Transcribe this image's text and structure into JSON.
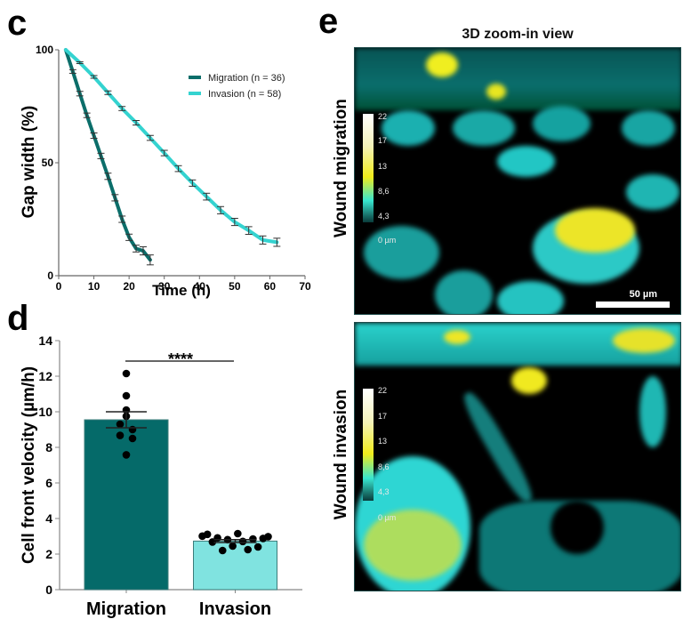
{
  "panels": {
    "c": "c",
    "d": "d",
    "e": "e"
  },
  "chart_data": [
    {
      "panel": "c",
      "type": "line",
      "title": "",
      "xlabel": "Time (h)",
      "ylabel": "Gap width (%)",
      "xlim": [
        0,
        70
      ],
      "ylim": [
        0,
        100
      ],
      "xticks": [
        0,
        10,
        20,
        30,
        40,
        50,
        60,
        70
      ],
      "yticks": [
        0,
        50,
        100
      ],
      "grid": false,
      "legend_position": "top-right",
      "series": [
        {
          "name": "Migration (n = 36)",
          "color": "#0b6e6a",
          "x": [
            2,
            4,
            6,
            8,
            10,
            12,
            14,
            16,
            18,
            20,
            22,
            24,
            26
          ],
          "y": [
            100,
            90.4,
            80.6,
            71,
            62,
            53,
            44,
            34.5,
            25,
            17,
            12,
            11,
            7
          ],
          "err": [
            0,
            0.8,
            1.0,
            1.0,
            1.2,
            1.2,
            1.4,
            1.4,
            1.4,
            1.4,
            1.5,
            1.8,
            2.2
          ]
        },
        {
          "name": "Invasion (n = 58)",
          "color": "#34d3d0",
          "x": [
            2,
            6,
            10,
            14,
            18,
            22,
            26,
            30,
            34,
            38,
            42,
            46,
            50,
            54,
            58,
            62
          ],
          "y": [
            100,
            94.3,
            88,
            81,
            74,
            67.7,
            61,
            54.3,
            47.4,
            41,
            35,
            29,
            23.8,
            20,
            15.8,
            14.8
          ],
          "err": [
            0,
            0.4,
            0.6,
            0.8,
            0.9,
            1.0,
            1.1,
            1.2,
            1.3,
            1.4,
            1.5,
            1.6,
            1.6,
            1.7,
            1.8,
            1.8
          ]
        }
      ]
    },
    {
      "panel": "d",
      "type": "bar",
      "title": "",
      "xlabel": "",
      "ylabel": "Cell front velocity (µm/h)",
      "ylim": [
        0,
        14
      ],
      "yticks": [
        0,
        2,
        4,
        6,
        8,
        10,
        12,
        14
      ],
      "grid": false,
      "categories": [
        "Migration",
        "Invasion"
      ],
      "values": [
        9.55,
        2.73
      ],
      "error": [
        [
          9.1,
          10.0
        ],
        [
          2.65,
          2.81
        ]
      ],
      "colors": [
        "#056a69",
        "#80e3e0"
      ],
      "points": [
        [
          12.15,
          10.9,
          10.1,
          9.75,
          9.3,
          9.0,
          8.67,
          8.5,
          7.58
        ],
        [
          3.01,
          3.11,
          2.68,
          2.91,
          2.2,
          2.81,
          2.45,
          3.15,
          2.71,
          2.25,
          2.85,
          2.4,
          2.88,
          2.98
        ]
      ],
      "significance": {
        "label": "****",
        "between": [
          "Migration",
          "Invasion"
        ]
      }
    }
  ],
  "panel_e": {
    "title": "3D zoom-in view",
    "rows": [
      {
        "label": "Wound migration",
        "colorbar_ticks": [
          "22",
          "17",
          "13",
          "8,6",
          "4,3",
          "0 µm"
        ],
        "scalebar": "50 µm"
      },
      {
        "label": "Wound invasion",
        "colorbar_ticks": [
          "22",
          "17",
          "13",
          "8,6",
          "4,3",
          "0 µm"
        ]
      }
    ]
  }
}
